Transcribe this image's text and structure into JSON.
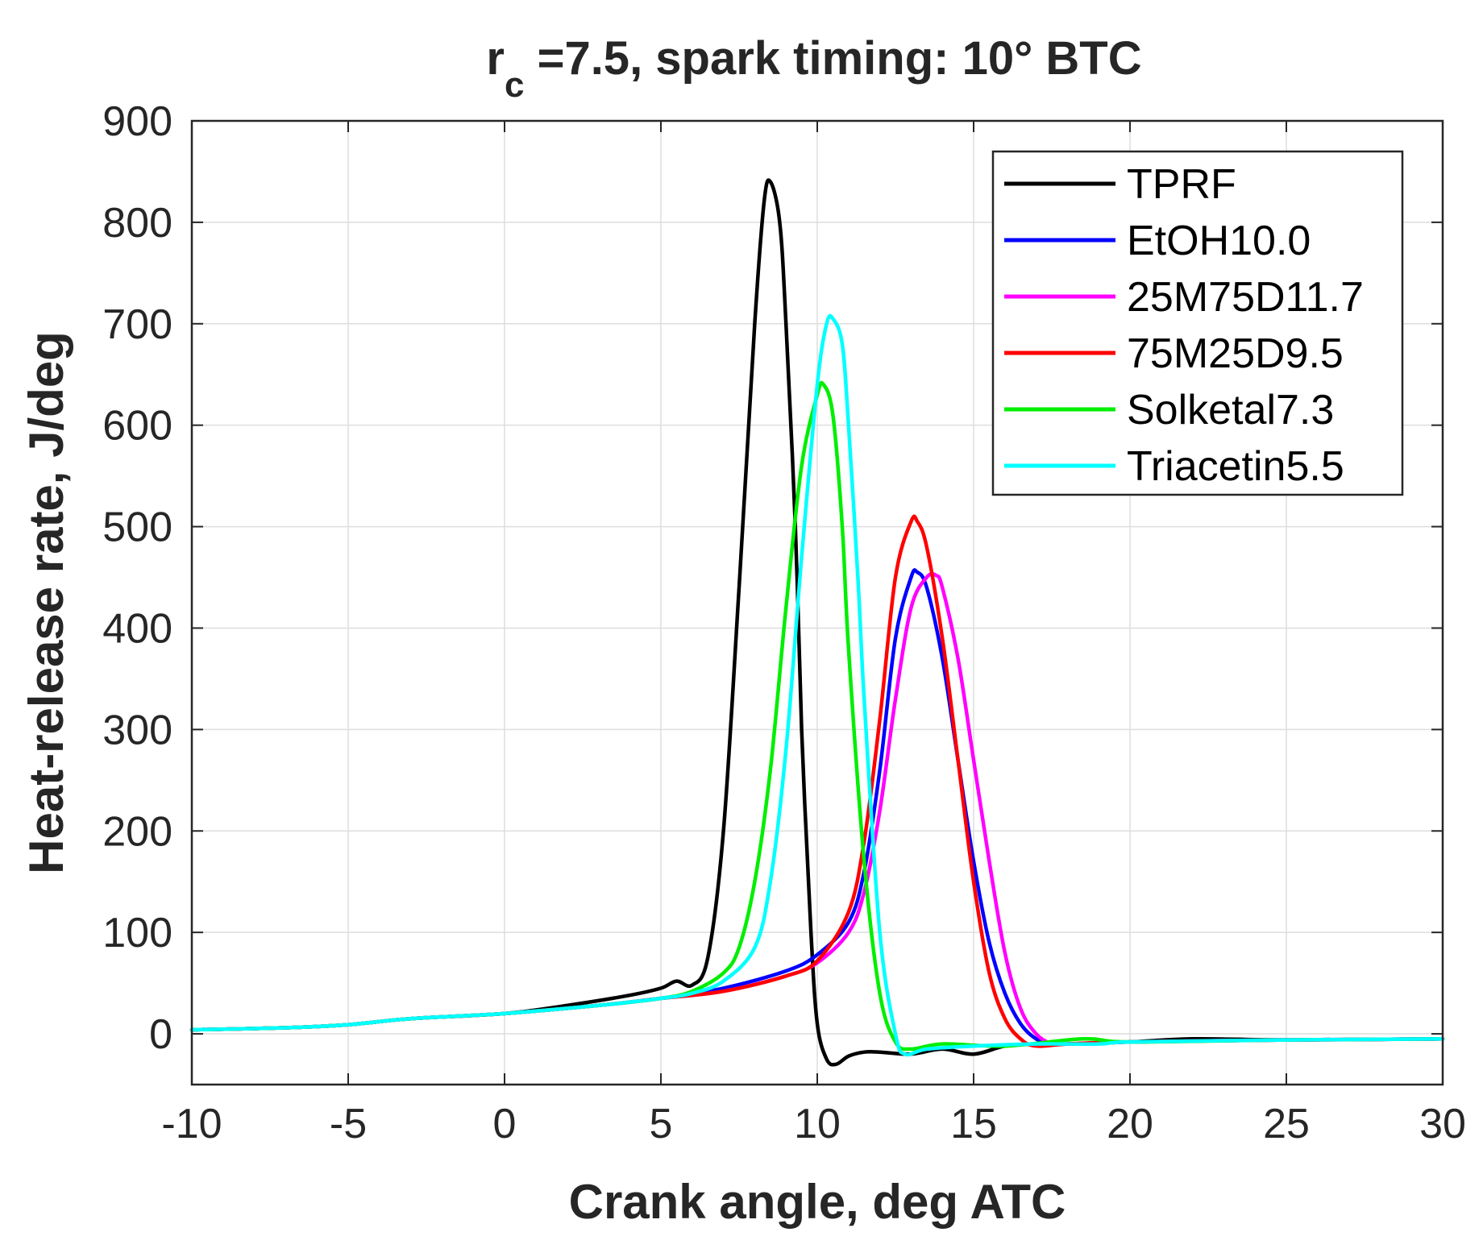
{
  "chart_data": {
    "type": "line",
    "title": {
      "prefix": "r",
      "subscript": "c",
      "rest": " =7.5, spark timing: 10° BTC"
    },
    "xlabel": "Crank angle, deg ATC",
    "ylabel": "Heat-release rate,  J/deg",
    "xlim": [
      -10,
      30
    ],
    "ylim": [
      -50,
      900
    ],
    "xticks": [
      -10,
      -5,
      0,
      5,
      10,
      15,
      20,
      25,
      30
    ],
    "yticks": [
      0,
      100,
      200,
      300,
      400,
      500,
      600,
      700,
      800,
      900
    ],
    "grid": true,
    "legend_position": "top-right",
    "series": [
      {
        "name": "TPRF",
        "color": "#000000",
        "x": [
          -10,
          -7,
          -5,
          -3,
          0,
          2,
          4,
          5,
          5.5,
          6,
          6.5,
          7,
          7.5,
          8,
          8.3,
          8.5,
          8.8,
          9,
          9.3,
          9.5,
          9.8,
          10,
          10.3,
          10.6,
          11,
          11.5,
          12,
          13,
          14,
          15,
          16,
          17,
          18,
          20,
          22,
          25,
          30
        ],
        "y": [
          4,
          6,
          9,
          15,
          20,
          28,
          38,
          45,
          52,
          48,
          75,
          200,
          440,
          700,
          820,
          840,
          800,
          700,
          500,
          300,
          100,
          10,
          -25,
          -30,
          -22,
          -18,
          -18,
          -20,
          -15,
          -20,
          -12,
          -10,
          -10,
          -8,
          -5,
          -6,
          -5
        ]
      },
      {
        "name": "EtOH10.0",
        "color": "#0000ff",
        "x": [
          -10,
          -7,
          -5,
          -3,
          0,
          3,
          5,
          7,
          9,
          10,
          11,
          11.5,
          12,
          12.5,
          13,
          13.2,
          13.5,
          14,
          14.5,
          15,
          15.5,
          16,
          16.5,
          17,
          17.5,
          18,
          20,
          25,
          30
        ],
        "y": [
          4,
          6,
          9,
          15,
          20,
          28,
          35,
          45,
          62,
          78,
          110,
          160,
          260,
          390,
          450,
          455,
          440,
          370,
          270,
          170,
          90,
          40,
          10,
          -5,
          -10,
          -10,
          -8,
          -6,
          -5
        ]
      },
      {
        "name": "25M75D11.7",
        "color": "#ff00ff",
        "x": [
          -10,
          -7,
          -5,
          -3,
          0,
          3,
          5,
          7,
          9,
          10,
          11,
          11.5,
          12,
          12.5,
          13,
          13.5,
          13.8,
          14,
          14.5,
          15,
          15.5,
          16,
          16.5,
          17,
          17.5,
          18,
          20,
          25,
          30
        ],
        "y": [
          4,
          6,
          9,
          15,
          20,
          28,
          35,
          42,
          57,
          70,
          100,
          140,
          220,
          330,
          420,
          450,
          452,
          440,
          370,
          270,
          170,
          80,
          25,
          0,
          -10,
          -10,
          -8,
          -6,
          -5
        ]
      },
      {
        "name": "75M25D9.5",
        "color": "#ff0000",
        "x": [
          -10,
          -7,
          -5,
          -3,
          0,
          3,
          5,
          7,
          9,
          10,
          11,
          11.5,
          12,
          12.5,
          13,
          13.2,
          13.5,
          14,
          14.5,
          15,
          15.5,
          16,
          16.5,
          17,
          18,
          20,
          25,
          30
        ],
        "y": [
          4,
          6,
          9,
          15,
          20,
          28,
          35,
          42,
          57,
          72,
          120,
          190,
          310,
          450,
          505,
          505,
          480,
          390,
          270,
          150,
          60,
          15,
          -5,
          -12,
          -10,
          -8,
          -6,
          -5
        ]
      },
      {
        "name": "Solketal7.3",
        "color": "#00ee00",
        "x": [
          -10,
          -7,
          -5,
          -3,
          0,
          3,
          5,
          6,
          7,
          7.5,
          8,
          8.5,
          9,
          9.5,
          10,
          10.2,
          10.5,
          10.8,
          11,
          11.5,
          12,
          12.5,
          13,
          14,
          16,
          18.5,
          20,
          25,
          30
        ],
        "y": [
          4,
          6,
          9,
          15,
          20,
          28,
          35,
          42,
          60,
          85,
          150,
          260,
          420,
          560,
          630,
          640,
          610,
          500,
          380,
          170,
          40,
          -8,
          -15,
          -10,
          -12,
          -5,
          -8,
          -6,
          -5
        ]
      },
      {
        "name": "Triacetin5.5",
        "color": "#00ffff",
        "x": [
          -10,
          -7,
          -5,
          -3,
          0,
          3,
          5,
          6,
          7,
          8,
          8.5,
          9,
          9.5,
          10,
          10.3,
          10.5,
          10.8,
          11,
          11.3,
          11.5,
          12,
          12.5,
          12.8,
          13.5,
          15,
          17,
          19,
          20,
          25,
          30
        ],
        "y": [
          4,
          6,
          9,
          15,
          20,
          28,
          35,
          40,
          52,
          85,
          150,
          280,
          470,
          640,
          700,
          705,
          680,
          600,
          450,
          330,
          100,
          0,
          -20,
          -15,
          -12,
          -10,
          -10,
          -8,
          -6,
          -5
        ]
      }
    ]
  }
}
